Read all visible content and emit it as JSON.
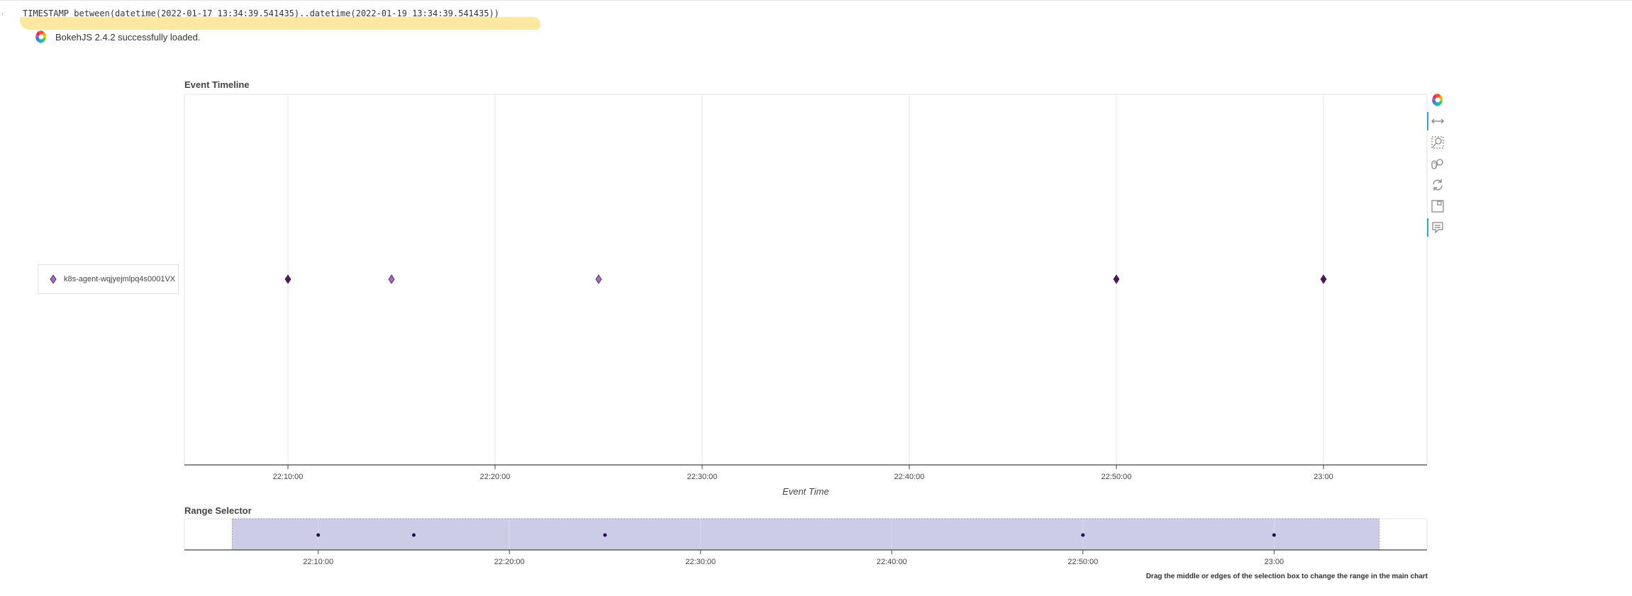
{
  "query_text": "TIMESTAMP between(datetime(2022-01-17 13:34:39.541435)..datetime(2022-01-19 13:34:39.541435))",
  "bokeh_status": "BokehJS 2.4.2 successfully loaded.",
  "footnote": "Drag the middle or edges of the selection box to change the range in the main chart",
  "toolbar": {
    "tools": [
      {
        "name": "bokeh-logo-icon",
        "interactable": true,
        "active": false
      },
      {
        "name": "x-pan-icon",
        "interactable": true,
        "active": true
      },
      {
        "name": "box-zoom-icon",
        "interactable": true,
        "active": false
      },
      {
        "name": "wheel-zoom-icon",
        "interactable": true,
        "active": false
      },
      {
        "name": "reset-icon",
        "interactable": true,
        "active": false
      },
      {
        "name": "save-icon",
        "interactable": true,
        "active": false
      },
      {
        "name": "hover-icon",
        "interactable": true,
        "active": true
      }
    ]
  },
  "colors": {
    "marker_dark": "#4b1a5c",
    "marker_light": "#9b6fb8",
    "range_marker": "#2b0a4f",
    "range_box_fill": "#cccce6",
    "grid": "#e5e5e5"
  },
  "chart_data": [
    {
      "type": "scatter",
      "title": "Event Timeline",
      "xlabel": "Event Time",
      "ylabel": "",
      "x_axis_type": "datetime",
      "xlim": [
        "22:05:00",
        "23:05:00"
      ],
      "x_ticks": [
        "22:10:00",
        "22:20:00",
        "22:30:00",
        "22:40:00",
        "22:50:00",
        "23:00"
      ],
      "legend": {
        "placement": "left",
        "entries": [
          "k8s-agent-wqjyejmlpq4s0001VX"
        ]
      },
      "grid": true,
      "series": [
        {
          "name": "k8s-agent-wqjyejmlpq4s0001VX",
          "marker": "diamond",
          "x": [
            "22:10:00",
            "22:15:00",
            "22:25:00",
            "22:50:00",
            "23:00:00"
          ],
          "shade": [
            "dark",
            "light",
            "light",
            "dark",
            "dark"
          ]
        }
      ]
    },
    {
      "type": "scatter",
      "title": "Range Selector",
      "x_axis_type": "datetime",
      "xlim": [
        "22:03:00",
        "23:08:00"
      ],
      "x_ticks": [
        "22:10:00",
        "22:20:00",
        "22:30:00",
        "22:40:00",
        "22:50:00",
        "23:00"
      ],
      "selection_range": [
        "22:05:30",
        "23:05:30"
      ],
      "grid": true,
      "series": [
        {
          "marker": "circle",
          "x": [
            "22:10:00",
            "22:15:00",
            "22:25:00",
            "22:50:00",
            "23:00:00"
          ]
        }
      ]
    }
  ]
}
